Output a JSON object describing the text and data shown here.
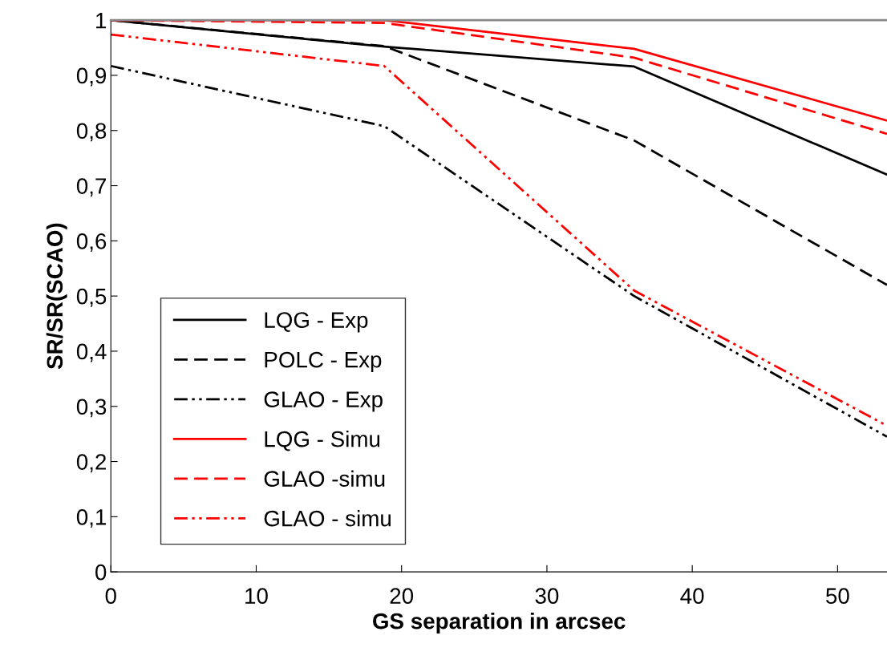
{
  "chart_data": {
    "type": "line",
    "xlabel": "GS separation in arcsec",
    "ylabel": "SR/SR(SCAO)",
    "x": [
      0,
      18.8,
      36,
      53.4
    ],
    "series": [
      {
        "name": "LQG - Exp",
        "color": "#000000",
        "line_style": "solid",
        "values": [
          1.0,
          0.952,
          0.916,
          0.72
        ]
      },
      {
        "name": "POLC - Exp",
        "color": "#000000",
        "line_style": "dashed",
        "values": [
          1.0,
          0.953,
          0.782,
          0.52
        ]
      },
      {
        "name": "GLAO - Exp",
        "color": "#000000",
        "line_style": "dashdot",
        "values": [
          0.917,
          0.808,
          0.5,
          0.245
        ]
      },
      {
        "name": "LQG - Simu",
        "color": "#ff0000",
        "line_style": "solid",
        "values": [
          1.0,
          1.0,
          0.948,
          0.818
        ]
      },
      {
        "name": "GLAO -simu",
        "color": "#ff0000",
        "line_style": "dashed",
        "values": [
          1.0,
          0.995,
          0.932,
          0.794
        ]
      },
      {
        "name": "GLAO - simu",
        "color": "#ff0000",
        "line_style": "dashdot",
        "values": [
          0.974,
          0.917,
          0.51,
          0.265
        ]
      }
    ],
    "xlim": [
      0,
      53.4
    ],
    "xticks": [
      0,
      10,
      20,
      30,
      40,
      50
    ],
    "ylim": [
      0,
      1
    ],
    "yticks": [
      0,
      {
        "value": 0.1,
        "label": "0,1"
      },
      {
        "value": 0.2,
        "label": "0,2"
      },
      {
        "value": 0.3,
        "label": "0,3"
      },
      {
        "value": 0.4,
        "label": "0,4"
      },
      {
        "value": 0.5,
        "label": "0,5"
      },
      {
        "value": 0.6,
        "label": "0,6"
      },
      {
        "value": 0.7,
        "label": "0,7"
      },
      {
        "value": 0.8,
        "label": "0,8"
      },
      {
        "value": 0.9,
        "label": "0,9"
      },
      1
    ],
    "grid": false,
    "legend": "bottom left",
    "marker": "none"
  }
}
